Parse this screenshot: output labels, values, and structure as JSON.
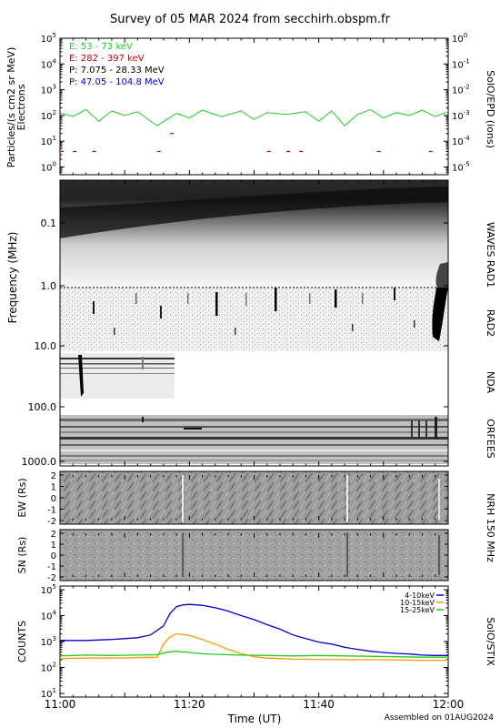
{
  "title": "Survey of 05 MAR 2024 from secchirh.obspm.fr",
  "footer": "Assembled on 01AUG2024",
  "colors": {
    "green": "#22cc22",
    "red": "#cc0000",
    "black": "#000000",
    "blue": "#0000cc",
    "orange": "#ff9900",
    "stix_green": "#22cc22"
  },
  "time_axis": {
    "label": "Time (UT)",
    "ticks": [
      "11:00",
      "11:20",
      "11:40",
      "12:00"
    ],
    "range": [
      "11:00",
      "12:00"
    ]
  },
  "chart_data": [
    {
      "type": "line",
      "panel": "particles",
      "ylabel_left": "Particles/(s cm2 sr MeV)",
      "ylabel_left2": "Electrons",
      "ylabel_right": "SolO/EPD (ions)",
      "scale": "log",
      "ylim": [
        0.5,
        100000
      ],
      "yticks_left": [
        "10^0",
        "10^1",
        "10^2",
        "10^3",
        "10^4",
        "10^5"
      ],
      "yticks_right": [
        "10^-5",
        "10^-4",
        "10^-3",
        "10^-2",
        "10^-1",
        "10^0"
      ],
      "series": [
        {
          "name": "E: 53 - 73 keV",
          "color": "#22cc22",
          "x": [
            0,
            2,
            4,
            6,
            8,
            10,
            12,
            15,
            18,
            20,
            22,
            25,
            28,
            30,
            32,
            35,
            38,
            40,
            42,
            44,
            46,
            48,
            50,
            52,
            54,
            56,
            58,
            60
          ],
          "y": [
            130,
            90,
            170,
            60,
            150,
            100,
            140,
            40,
            120,
            80,
            160,
            90,
            150,
            70,
            130,
            110,
            140,
            60,
            150,
            40,
            110,
            170,
            80,
            130,
            100,
            160,
            90,
            140
          ]
        },
        {
          "name": "E: 282 - 397 keV",
          "color": "#cc0000",
          "x": [
            0,
            2,
            5,
            15,
            17,
            32,
            35,
            37,
            49,
            57
          ],
          "y": [
            4,
            4,
            4,
            4,
            20,
            4,
            4,
            4,
            4,
            4
          ]
        },
        {
          "name": "P: 7.075 - 28.33 MeV",
          "color": "#000000",
          "x": [],
          "y": []
        },
        {
          "name": "P: 47.05 - 104.8 MeV",
          "color": "#0000cc",
          "x": [],
          "y": []
        }
      ]
    },
    {
      "type": "heatmap",
      "panel": "radio",
      "ylabel": "Frequency (MHz)",
      "scale": "log",
      "ylim": [
        0.02,
        2000
      ],
      "yticks": [
        "0.1",
        "1.0",
        "10.0",
        "100.0",
        "1000.0"
      ],
      "instruments": [
        "WAVES RAD1",
        "RAD2",
        "NDA",
        "ORFEES"
      ]
    },
    {
      "type": "heatmap",
      "panel": "nrh_ew",
      "ylabel": "EW (Rs)",
      "ylim": [
        -2,
        2
      ],
      "yticks": [
        "2",
        "1",
        "0",
        "-1",
        "-2"
      ],
      "instrument": "NRH 150 MHz"
    },
    {
      "type": "heatmap",
      "panel": "nrh_sn",
      "ylabel": "SN (Rs)",
      "ylim": [
        -2,
        2
      ],
      "yticks": [
        "2",
        "1",
        "0",
        "-1",
        "-2"
      ]
    },
    {
      "type": "line",
      "panel": "stix",
      "ylabel": "COUNTS",
      "ylabel_right": "SolO/STIX",
      "scale": "log",
      "ylim": [
        10,
        100000
      ],
      "yticks": [
        "10^1",
        "10^2",
        "10^3",
        "10^4",
        "10^5"
      ],
      "series": [
        {
          "name": "4-10keV",
          "color": "#0000cc",
          "x": [
            0,
            4,
            8,
            12,
            14,
            16,
            17,
            18,
            19,
            20,
            22,
            24,
            26,
            28,
            30,
            32,
            34,
            36,
            38,
            40,
            42,
            44,
            46,
            48,
            50,
            52,
            54,
            56,
            58,
            60
          ],
          "y": [
            1100,
            1100,
            1200,
            1400,
            1800,
            4000,
            12000,
            22000,
            26000,
            27000,
            25000,
            20000,
            15000,
            10000,
            7000,
            4500,
            3000,
            1800,
            1300,
            950,
            800,
            600,
            500,
            420,
            380,
            350,
            330,
            300,
            290,
            290
          ]
        },
        {
          "name": "10-15keV",
          "color": "#ff9900",
          "x": [
            0,
            4,
            8,
            12,
            15,
            16,
            17,
            18,
            19,
            20,
            22,
            24,
            26,
            28,
            30,
            32,
            34,
            36,
            40,
            44,
            48,
            52,
            56,
            60
          ],
          "y": [
            220,
            230,
            230,
            240,
            250,
            800,
            1500,
            2000,
            1900,
            1700,
            1200,
            800,
            500,
            340,
            260,
            230,
            220,
            210,
            205,
            200,
            200,
            195,
            190,
            190
          ]
        },
        {
          "name": "15-25keV",
          "color": "#22cc22",
          "x": [
            0,
            4,
            8,
            12,
            15,
            16,
            17,
            18,
            20,
            22,
            24,
            28,
            32,
            36,
            40,
            44,
            48,
            52,
            56,
            60
          ],
          "y": [
            280,
            300,
            290,
            300,
            310,
            360,
            400,
            420,
            380,
            340,
            320,
            300,
            290,
            280,
            290,
            280,
            270,
            260,
            250,
            250
          ]
        }
      ]
    }
  ]
}
